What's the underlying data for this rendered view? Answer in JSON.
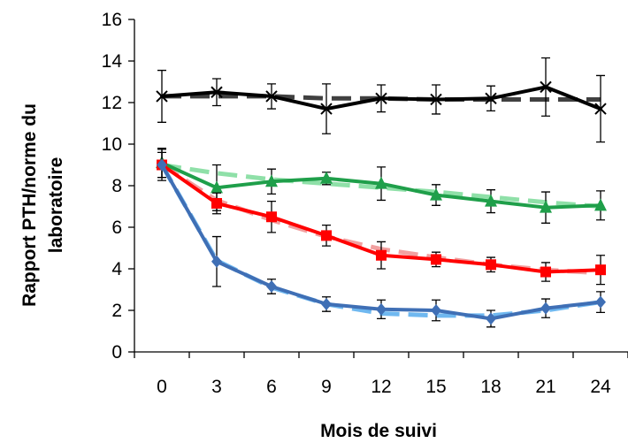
{
  "chart_data": {
    "type": "line",
    "title": "",
    "xlabel": "Mois de suivi",
    "ylabel_lines": [
      "Rapport PTH/norme du",
      "laboratoire"
    ],
    "x": [
      0,
      3,
      6,
      9,
      12,
      15,
      18,
      21,
      24
    ],
    "x_ticks": [
      "0",
      "3",
      "6",
      "9",
      "12",
      "15",
      "18",
      "21",
      "24"
    ],
    "y_ticks": [
      "0",
      "2",
      "4",
      "6",
      "8",
      "10",
      "12",
      "14",
      "16"
    ],
    "ylim": [
      0,
      16
    ],
    "grid": false,
    "legend": "none",
    "series": [
      {
        "color": "#000000",
        "marker": "x",
        "dash": "solid",
        "values": [
          12.3,
          12.5,
          12.3,
          11.7,
          12.2,
          12.15,
          12.2,
          12.75,
          11.7
        ],
        "err": [
          1.25,
          0.65,
          0.6,
          1.2,
          0.65,
          0.7,
          0.6,
          1.4,
          1.6
        ]
      },
      {
        "color": "#404040",
        "marker": "none",
        "dash": "dashed",
        "values": [
          12.3,
          12.3,
          12.3,
          12.2,
          12.2,
          12.15,
          12.15,
          12.15,
          12.15
        ]
      },
      {
        "color": "#1f9f4a",
        "marker": "triangle",
        "dash": "solid",
        "values": [
          9.1,
          7.9,
          8.2,
          8.35,
          8.1,
          7.55,
          7.25,
          6.95,
          7.05
        ],
        "err": [
          0.7,
          1.1,
          0.6,
          0.3,
          0.8,
          0.5,
          0.55,
          0.75,
          0.7
        ]
      },
      {
        "color": "#8fe0a8",
        "marker": "none",
        "dash": "dashed",
        "values": [
          9.0,
          8.6,
          8.3,
          8.1,
          7.9,
          7.7,
          7.45,
          7.2,
          7.0
        ]
      },
      {
        "color": "#ff0000",
        "marker": "square",
        "dash": "solid",
        "values": [
          9.0,
          7.15,
          6.5,
          5.6,
          4.65,
          4.45,
          4.2,
          3.85,
          3.95
        ],
        "err": [
          0.75,
          0.5,
          0.75,
          0.5,
          0.65,
          0.35,
          0.35,
          0.45,
          0.7
        ]
      },
      {
        "color": "#f2a0a0",
        "marker": "none",
        "dash": "dashed",
        "values": [
          9.0,
          7.3,
          6.35,
          5.55,
          4.95,
          4.55,
          4.2,
          3.95,
          3.8
        ]
      },
      {
        "color": "#3f6fb5",
        "marker": "diamond",
        "dash": "solid",
        "values": [
          9.0,
          4.35,
          3.15,
          2.3,
          2.05,
          2.0,
          1.6,
          2.1,
          2.4
        ],
        "err": [
          0.6,
          1.2,
          0.35,
          0.35,
          0.45,
          0.5,
          0.4,
          0.45,
          0.5
        ]
      },
      {
        "color": "#6fb8f0",
        "marker": "none",
        "dash": "dashed",
        "values": [
          9.0,
          4.4,
          3.1,
          2.3,
          1.85,
          1.75,
          1.75,
          2.0,
          2.4
        ]
      }
    ]
  }
}
